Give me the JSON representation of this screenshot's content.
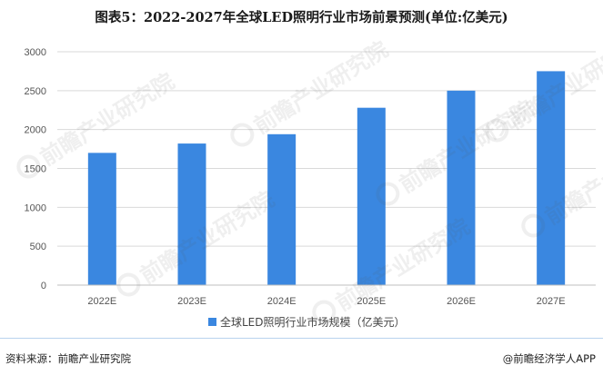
{
  "title": "图表5：2022-2027年全球LED照明行业市场前景预测(单位:亿美元)",
  "footer": {
    "source": "资料来源：前瞻产业研究院",
    "brand": "@前瞻经济学人APP"
  },
  "watermark": {
    "text": "前瞻产业研究院",
    "subtext": "前瞻产业研究院",
    "icon": "qianzhan-logo-icon"
  },
  "colors": {
    "bar": "#3a87e0",
    "grid": "#d9d9d9",
    "axis": "#bfbfbf"
  },
  "chart_data": {
    "type": "bar",
    "title": "图表5：2022-2027年全球LED照明行业市场前景预测(单位:亿美元)",
    "categories": [
      "2022E",
      "2023E",
      "2024E",
      "2025E",
      "2026E",
      "2027E"
    ],
    "series": [
      {
        "name": "全球LED照明行业市场规模（亿美元）",
        "values": [
          1700,
          1820,
          1940,
          2280,
          2500,
          2750
        ]
      }
    ],
    "yticks": [
      "0",
      "500",
      "1000",
      "1500",
      "2000",
      "2500",
      "3000"
    ],
    "ylim": [
      0,
      3000
    ],
    "grid": true,
    "legend": "bottom"
  }
}
